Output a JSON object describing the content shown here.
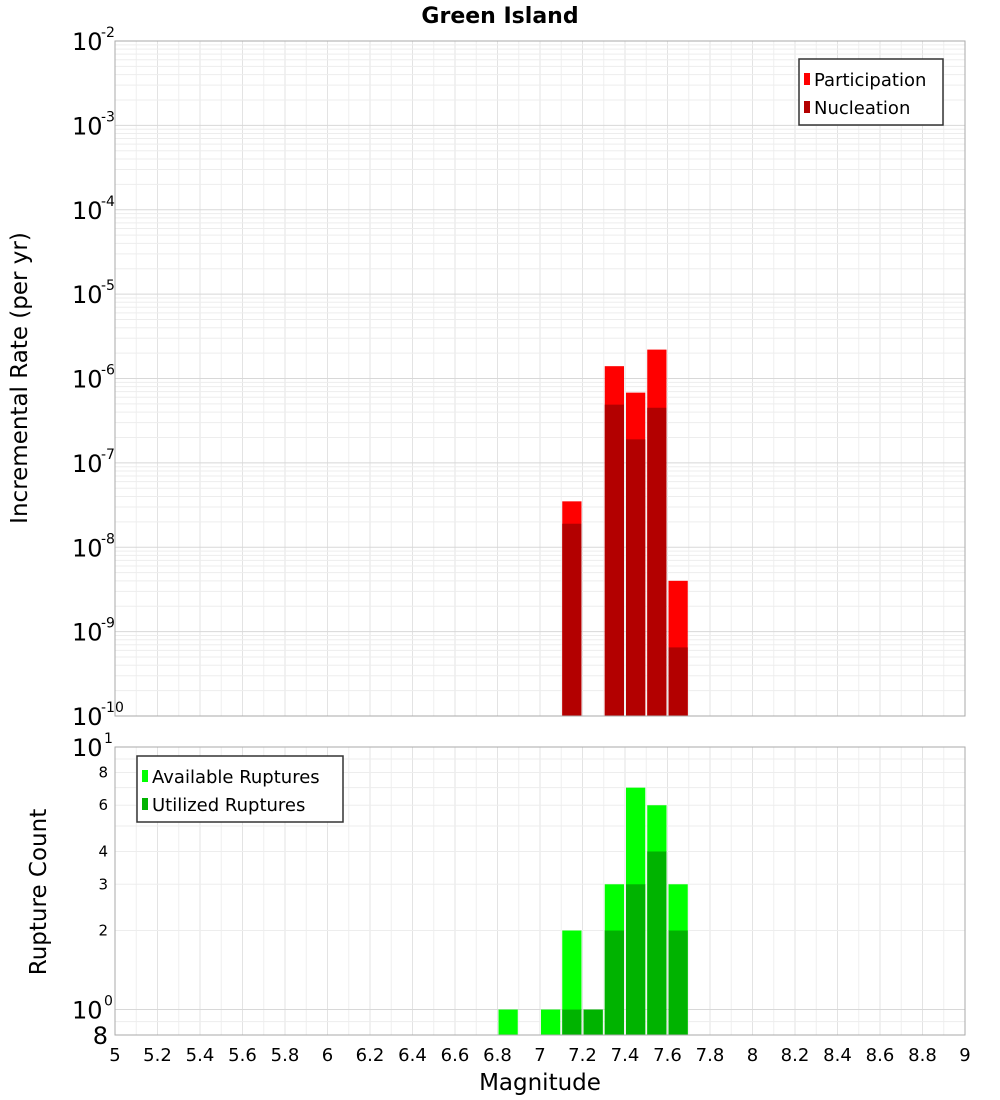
{
  "chart_data": [
    {
      "type": "bar",
      "title": "Green Island",
      "ylabel": "Incremental Rate (per yr)",
      "xlabel": "",
      "xlim": [
        5,
        9
      ],
      "ylim": [
        1e-10,
        0.01
      ],
      "y_scale": "log",
      "bin_width": 0.1,
      "grid": true,
      "legend_position": "top-right",
      "y_ticks": [
        {
          "base": "10",
          "exp": "-2"
        },
        {
          "base": "10",
          "exp": "-3"
        },
        {
          "base": "10",
          "exp": "-4"
        },
        {
          "base": "10",
          "exp": "-5"
        },
        {
          "base": "10",
          "exp": "-6"
        },
        {
          "base": "10",
          "exp": "-7"
        },
        {
          "base": "10",
          "exp": "-8"
        },
        {
          "base": "10",
          "exp": "-9"
        },
        {
          "base": "10",
          "exp": "-10"
        }
      ],
      "series": [
        {
          "name": "Participation",
          "color": "#ff0000",
          "x": [
            7.15,
            7.35,
            7.45,
            7.55,
            7.65
          ],
          "values": [
            3.5e-08,
            1.4e-06,
            6.8e-07,
            2.2e-06,
            4e-09
          ]
        },
        {
          "name": "Nucleation",
          "color": "#b30000",
          "x": [
            7.15,
            7.35,
            7.45,
            7.55,
            7.65
          ],
          "values": [
            1.9e-08,
            4.9e-07,
            1.9e-07,
            4.5e-07,
            6.5e-10
          ]
        }
      ]
    },
    {
      "type": "bar",
      "ylabel": "Rupture Count",
      "xlabel": "Magnitude",
      "xlim": [
        5,
        9
      ],
      "ylim": [
        0.8,
        10
      ],
      "y_scale": "log",
      "bin_width": 0.1,
      "grid": true,
      "legend_position": "top-left",
      "x_ticks": [
        "5",
        "5.2",
        "5.4",
        "5.6",
        "5.8",
        "6",
        "6.2",
        "6.4",
        "6.6",
        "6.8",
        "7",
        "7.2",
        "7.4",
        "7.6",
        "7.8",
        "8",
        "8.2",
        "8.4",
        "8.6",
        "8.8",
        "9"
      ],
      "y_major_ticks": [
        {
          "base": "10",
          "exp": "1"
        },
        {
          "base": "10",
          "exp": "0"
        }
      ],
      "y_minor_ticks": [
        "8",
        "6",
        "4",
        "3",
        "2"
      ],
      "y_bottom_label": "8",
      "series": [
        {
          "name": "Available Ruptures",
          "color": "#00ff00",
          "x": [
            6.85,
            7.05,
            7.15,
            7.25,
            7.35,
            7.45,
            7.55,
            7.65
          ],
          "values": [
            1,
            1,
            2,
            1,
            3,
            7,
            6,
            3
          ]
        },
        {
          "name": "Utilized Ruptures",
          "color": "#00b300",
          "x": [
            7.15,
            7.25,
            7.35,
            7.45,
            7.55,
            7.65
          ],
          "values": [
            1,
            1,
            2,
            3,
            4,
            2
          ]
        }
      ]
    }
  ]
}
